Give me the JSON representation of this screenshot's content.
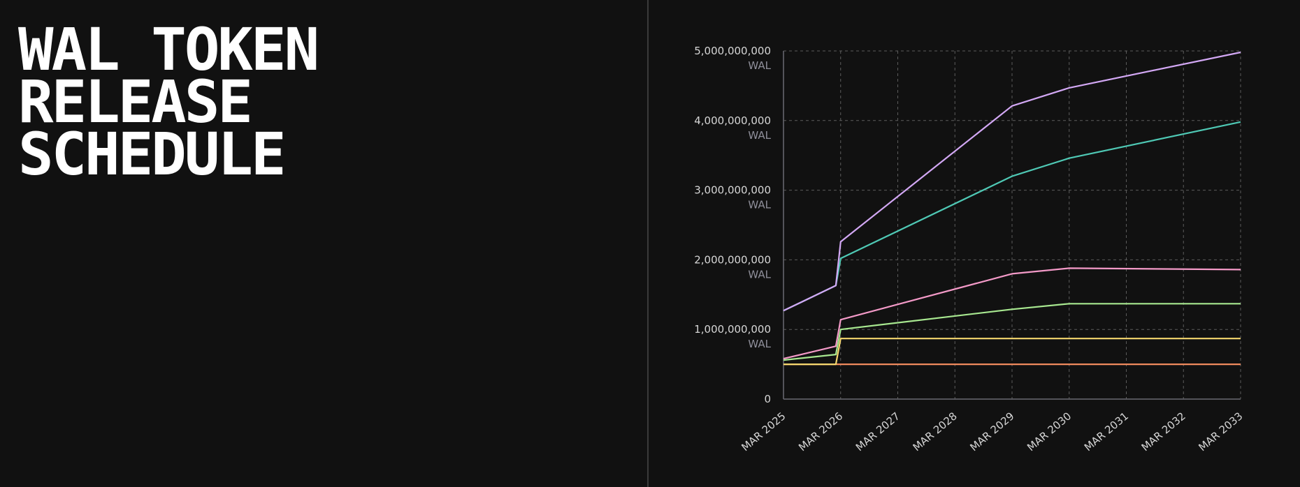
{
  "page": {
    "title_lines": [
      "WAL TOKEN",
      "RELEASE",
      "SCHEDULE"
    ]
  },
  "chart_data": {
    "type": "line",
    "title": "WAL TOKEN RELEASE SCHEDULE",
    "xlabel": "",
    "ylabel": "",
    "x_ticks": [
      "MAR 2025",
      "MAR 2026",
      "MAR 2027",
      "MAR 2028",
      "MAR 2029",
      "MAR 2030",
      "MAR 2031",
      "MAR 2032",
      "MAR 2033"
    ],
    "xlim": [
      "2025-03",
      "2033-03"
    ],
    "y_ticks": [
      {
        "value": 0,
        "label": "0",
        "unit": ""
      },
      {
        "value": 1000000000,
        "label": "1,000,000,000",
        "unit": "WAL"
      },
      {
        "value": 2000000000,
        "label": "2,000,000,000",
        "unit": "WAL"
      },
      {
        "value": 3000000000,
        "label": "3,000,000,000",
        "unit": "WAL"
      },
      {
        "value": 4000000000,
        "label": "4,000,000,000",
        "unit": "WAL"
      },
      {
        "value": 5000000000,
        "label": "5,000,000,000",
        "unit": "WAL"
      }
    ],
    "ylim": [
      0,
      5000000000
    ],
    "grid": true,
    "series": [
      {
        "color": "#f08a5d",
        "points": [
          [
            "2025-03",
            500000000
          ],
          [
            "2033-03",
            500000000
          ]
        ]
      },
      {
        "color": "#f5d76e",
        "points": [
          [
            "2025-03",
            500000000
          ],
          [
            "2026-02",
            500000000
          ],
          [
            "2026-03",
            870000000
          ],
          [
            "2033-03",
            870000000
          ]
        ]
      },
      {
        "color": "#a8e890",
        "points": [
          [
            "2025-03",
            560000000
          ],
          [
            "2026-02",
            640000000
          ],
          [
            "2026-03",
            1000000000
          ],
          [
            "2029-03",
            1290000000
          ],
          [
            "2030-03",
            1370000000
          ],
          [
            "2033-03",
            1370000000
          ]
        ]
      },
      {
        "color": "#f49ac8",
        "points": [
          [
            "2025-03",
            580000000
          ],
          [
            "2026-02",
            760000000
          ],
          [
            "2026-03",
            1140000000
          ],
          [
            "2029-03",
            1800000000
          ],
          [
            "2030-03",
            1880000000
          ],
          [
            "2033-03",
            1860000000
          ]
        ]
      },
      {
        "color": "#4fc9b5",
        "points": [
          [
            "2025-03",
            1270000000
          ],
          [
            "2026-02",
            1630000000
          ],
          [
            "2026-03",
            2020000000
          ],
          [
            "2029-03",
            3200000000
          ],
          [
            "2030-03",
            3460000000
          ],
          [
            "2033-03",
            3980000000
          ]
        ]
      },
      {
        "color": "#d3a8f5",
        "points": [
          [
            "2025-03",
            1270000000
          ],
          [
            "2026-02",
            1630000000
          ],
          [
            "2026-03",
            2260000000
          ],
          [
            "2029-03",
            4210000000
          ],
          [
            "2030-03",
            4470000000
          ],
          [
            "2033-03",
            4980000000
          ]
        ]
      }
    ]
  }
}
